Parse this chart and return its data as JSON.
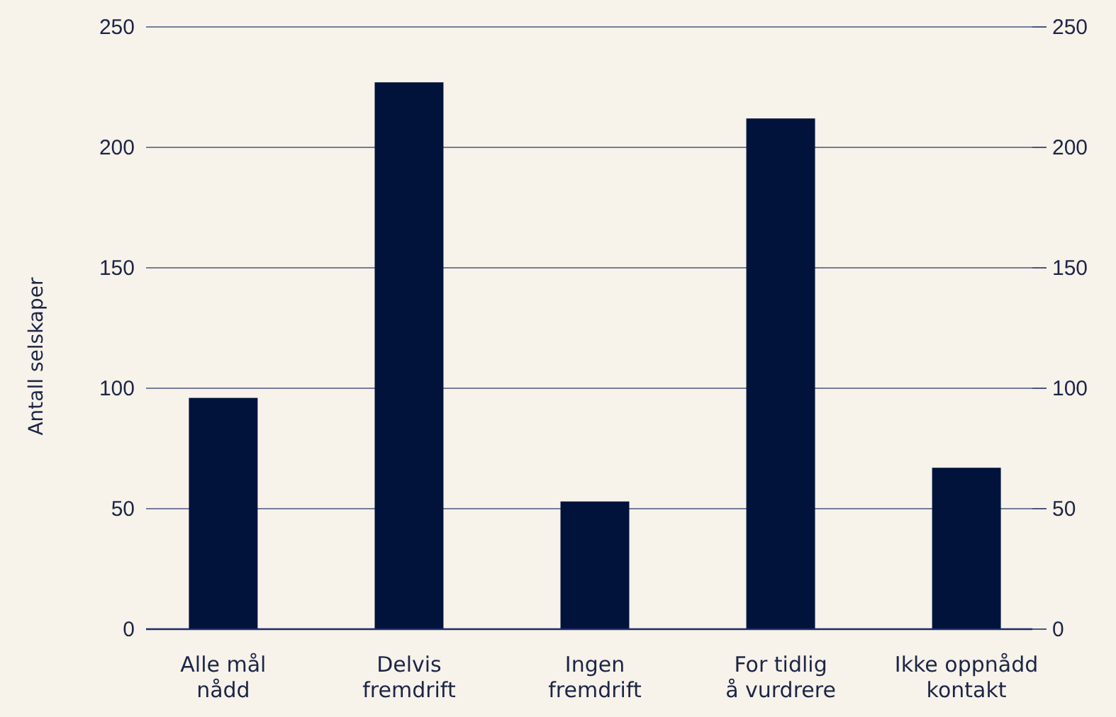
{
  "chart_data": {
    "type": "bar",
    "ylabel": "Antall selskaper",
    "categories": [
      "Alle mål\nnådd",
      "Delvis\nfremdrift",
      "Ingen\nfremdrift",
      "For tidlig\nå vurdrere",
      "Ikke oppnådd\nkontakt"
    ],
    "values": [
      96,
      227,
      53,
      212,
      67
    ],
    "color": "#01133a",
    "ylim": [
      0,
      250
    ],
    "yticks": [
      0,
      50,
      100,
      150,
      200,
      250
    ],
    "y2lim": [
      0,
      250
    ],
    "y2ticks": [
      0,
      50,
      100,
      150,
      200,
      250
    ],
    "grid": "y"
  }
}
